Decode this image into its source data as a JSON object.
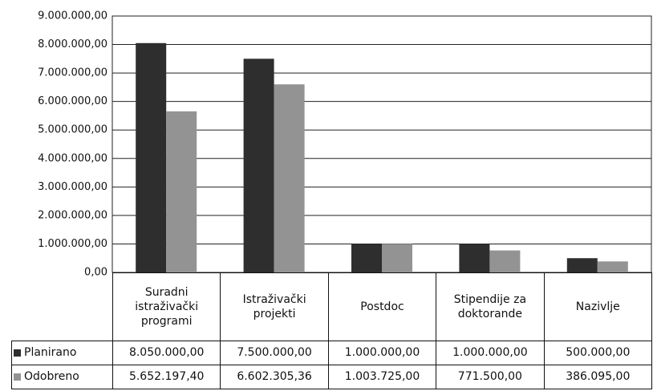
{
  "chart_data": {
    "type": "bar",
    "categories": [
      "Suradni istraživački programi",
      "Istraživački projekti",
      "Postdoc",
      "Stipendije za doktorande",
      "Nazivlje"
    ],
    "series": [
      {
        "name": "Planirano",
        "color": "#2e2e2e",
        "values": [
          8050000,
          7500000,
          1000000,
          1000000,
          500000
        ],
        "value_labels": [
          "8.050.000,00",
          "7.500.000,00",
          "1.000.000,00",
          "1.000.000,00",
          "500.000,00"
        ]
      },
      {
        "name": "Odobreno",
        "color": "#939393",
        "values": [
          5652197.4,
          6602305.36,
          1003725,
          771500,
          386095
        ],
        "value_labels": [
          "5.652.197,40",
          "6.602.305,36",
          "1.003.725,00",
          "771.500,00",
          "386.095,00"
        ]
      }
    ],
    "ylim": [
      0,
      9000000
    ],
    "yticks": [
      {
        "value": 0,
        "label": "0,00"
      },
      {
        "value": 1000000,
        "label": "1.000.000,00"
      },
      {
        "value": 2000000,
        "label": "2.000.000,00"
      },
      {
        "value": 3000000,
        "label": "3.000.000,00"
      },
      {
        "value": 4000000,
        "label": "4.000.000,00"
      },
      {
        "value": 5000000,
        "label": "5.000.000,00"
      },
      {
        "value": 6000000,
        "label": "6.000.000,00"
      },
      {
        "value": 7000000,
        "label": "7.000.000,00"
      },
      {
        "value": 8000000,
        "label": "8.000.000,00"
      },
      {
        "value": 9000000,
        "label": "9.000.000,00"
      }
    ],
    "grid": true
  }
}
